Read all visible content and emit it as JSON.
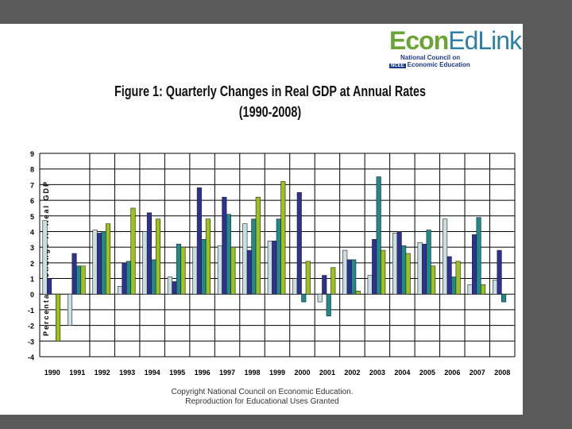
{
  "logo": {
    "name_part1": "Econ",
    "name_part2": "EdLink",
    "org_line1": "National Council on",
    "org_line2": "Economic Education",
    "badge": "NCEE"
  },
  "copyright": {
    "line1": "Copyright National Council on Economic Education.",
    "line2": "Reproduction for Educational Uses Granted"
  },
  "chart_data": {
    "type": "bar",
    "title": "Figure 1: Quarterly Changes in Real GDP at Annual Rates",
    "subtitle": "(1990-2008)",
    "xlabel": "",
    "ylabel": "Percentage Change in Real GDP",
    "ylim": [
      -4,
      9
    ],
    "yticks": [
      9,
      8,
      7,
      6,
      5,
      4,
      3,
      2,
      1,
      0,
      -1,
      -2,
      -3,
      -4
    ],
    "grid": true,
    "categories": [
      "1990",
      "1991",
      "1992",
      "1993",
      "1994",
      "1995",
      "1996",
      "1997",
      "1998",
      "1999",
      "2000",
      "2001",
      "2002",
      "2003",
      "2004",
      "2005",
      "2006",
      "2007",
      "2008"
    ],
    "colors": [
      "#c8dfe4",
      "#2e3192",
      "#1f8a8c",
      "#9cc31b"
    ],
    "series": [
      {
        "values": [
          4.7,
          -2.0,
          4.1,
          0.5,
          4.0,
          1.1,
          3.0,
          3.1,
          4.5,
          3.4,
          1.0,
          -0.5,
          2.8,
          1.2,
          3.9,
          3.3,
          4.8,
          0.6,
          0.9
        ]
      },
      {
        "values": [
          1.0,
          2.6,
          3.9,
          2.0,
          5.2,
          0.8,
          6.8,
          6.2,
          2.8,
          3.4,
          6.5,
          1.2,
          2.2,
          3.5,
          4.0,
          3.2,
          2.4,
          3.8,
          2.8
        ]
      },
      {
        "values": [
          0,
          1.8,
          4.0,
          2.1,
          2.2,
          3.2,
          3.5,
          5.1,
          4.8,
          4.8,
          -0.5,
          -1.4,
          2.2,
          7.5,
          3.1,
          4.1,
          1.1,
          4.9,
          -0.5
        ]
      },
      {
        "values": [
          -3.0,
          1.8,
          4.5,
          5.5,
          4.8,
          3.0,
          4.8,
          3.0,
          6.2,
          7.2,
          2.1,
          1.7,
          0.2,
          2.8,
          2.6,
          1.8,
          2.1,
          0.6,
          null
        ]
      }
    ]
  }
}
